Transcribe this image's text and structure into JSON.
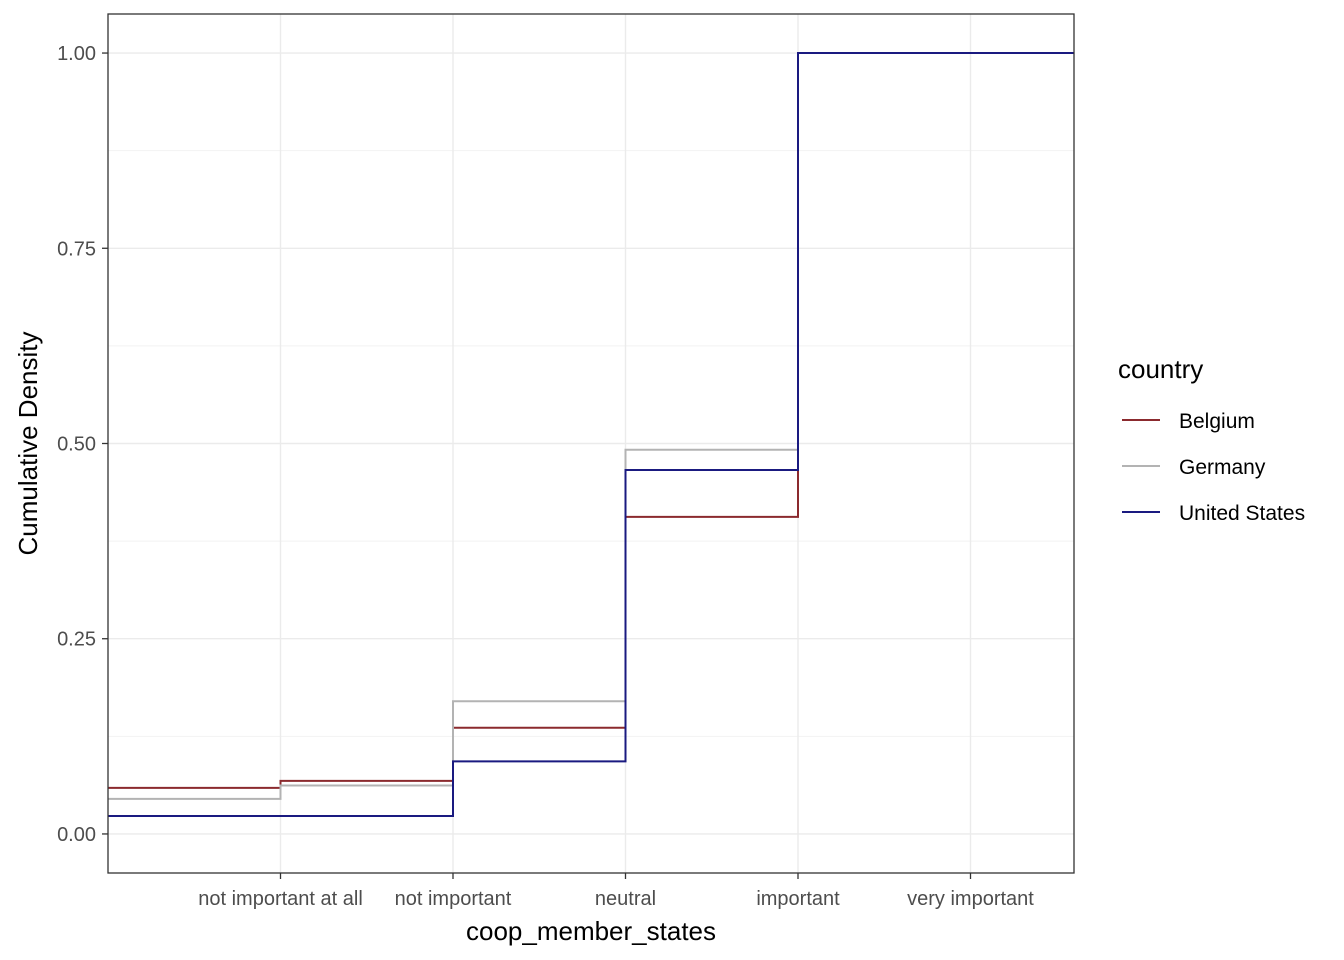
{
  "chart_data": {
    "type": "line",
    "step": true,
    "xlabel": "coop_member_states",
    "ylabel": "Cumulative Density",
    "categories": [
      "not important at all",
      "not important",
      "neutral",
      "important",
      "very important"
    ],
    "xlim": [
      0.0,
      5.6
    ],
    "ylim": [
      -0.05,
      1.05
    ],
    "yticks": [
      0.0,
      0.25,
      0.5,
      0.75,
      1.0
    ],
    "ytick_labels": [
      "0.00",
      "0.25",
      "0.50",
      "0.75",
      "1.00"
    ],
    "grid": true,
    "legend": {
      "title": "country",
      "position": "right"
    },
    "series": [
      {
        "name": "Belgium",
        "color": "#8b2a2e",
        "values": [
          0.059,
          0.068,
          0.136,
          0.406,
          1.0
        ]
      },
      {
        "name": "Germany",
        "color": "#b3b3b3",
        "values": [
          0.045,
          0.062,
          0.17,
          0.492,
          1.0
        ]
      },
      {
        "name": "United States",
        "color": "#1a1a80",
        "values": [
          0.023,
          0.023,
          0.093,
          0.466,
          1.0
        ]
      }
    ]
  }
}
